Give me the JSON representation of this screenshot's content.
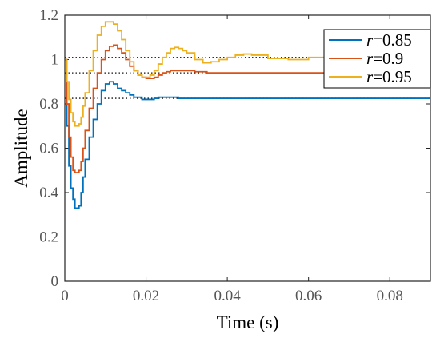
{
  "chart_data": {
    "type": "line",
    "xlabel": "Time (s)",
    "ylabel": "Amplitude",
    "xlim": [
      0,
      0.09
    ],
    "ylim": [
      0,
      1.2
    ],
    "xticks": [
      {
        "value": 0,
        "label": "0"
      },
      {
        "value": 0.02,
        "label": "0.02"
      },
      {
        "value": 0.04,
        "label": "0.04"
      },
      {
        "value": 0.06,
        "label": "0.06"
      },
      {
        "value": 0.08,
        "label": "0.08"
      }
    ],
    "yticks": [
      {
        "value": 0,
        "label": "0"
      },
      {
        "value": 0.2,
        "label": "0.2"
      },
      {
        "value": 0.4,
        "label": "0.4"
      },
      {
        "value": 0.6,
        "label": "0.6"
      },
      {
        "value": 0.8,
        "label": "0.8"
      },
      {
        "value": 1.0,
        "label": "1"
      },
      {
        "value": 1.2,
        "label": "1.2"
      }
    ],
    "grid": false,
    "legend_position": "top-right",
    "step_plot": true,
    "reference_lines": [
      0.825,
      0.94,
      1.01
    ],
    "series": [
      {
        "name_prefix": "r",
        "name_value": "=0.85",
        "color": "#0072BD",
        "x": [
          0,
          0.0005,
          0.001,
          0.0015,
          0.002,
          0.0025,
          0.003,
          0.0035,
          0.004,
          0.0045,
          0.005,
          0.006,
          0.007,
          0.008,
          0.009,
          0.01,
          0.011,
          0.012,
          0.013,
          0.014,
          0.015,
          0.016,
          0.017,
          0.018,
          0.019,
          0.02,
          0.021,
          0.022,
          0.023,
          0.024,
          0.026,
          0.028,
          0.03,
          0.035,
          0.04,
          0.05,
          0.06,
          0.07,
          0.08,
          0.09
        ],
        "values": [
          1.0,
          0.7,
          0.52,
          0.42,
          0.37,
          0.33,
          0.33,
          0.34,
          0.4,
          0.47,
          0.55,
          0.65,
          0.73,
          0.8,
          0.86,
          0.89,
          0.9,
          0.89,
          0.87,
          0.86,
          0.85,
          0.84,
          0.83,
          0.83,
          0.82,
          0.82,
          0.82,
          0.825,
          0.83,
          0.83,
          0.83,
          0.825,
          0.825,
          0.825,
          0.825,
          0.825,
          0.825,
          0.825,
          0.825,
          0.825
        ]
      },
      {
        "name_prefix": "r",
        "name_value": "=0.9",
        "color": "#D95319",
        "x": [
          0,
          0.0005,
          0.001,
          0.0015,
          0.002,
          0.0025,
          0.003,
          0.0035,
          0.004,
          0.0045,
          0.005,
          0.006,
          0.007,
          0.008,
          0.009,
          0.01,
          0.011,
          0.012,
          0.013,
          0.014,
          0.015,
          0.016,
          0.017,
          0.018,
          0.019,
          0.02,
          0.021,
          0.022,
          0.023,
          0.024,
          0.025,
          0.026,
          0.028,
          0.03,
          0.032,
          0.035,
          0.04,
          0.05,
          0.06,
          0.07,
          0.08,
          0.09
        ],
        "values": [
          1.0,
          0.8,
          0.65,
          0.56,
          0.5,
          0.49,
          0.49,
          0.5,
          0.54,
          0.6,
          0.68,
          0.78,
          0.87,
          0.94,
          1.0,
          1.04,
          1.06,
          1.065,
          1.05,
          1.03,
          1.0,
          0.97,
          0.95,
          0.93,
          0.92,
          0.915,
          0.915,
          0.92,
          0.93,
          0.94,
          0.945,
          0.95,
          0.95,
          0.95,
          0.945,
          0.94,
          0.94,
          0.94,
          0.94,
          0.94,
          0.94,
          0.94
        ]
      },
      {
        "name_prefix": "r",
        "name_value": "=0.95",
        "color": "#EDB120",
        "x": [
          0,
          0.0005,
          0.001,
          0.0015,
          0.002,
          0.0025,
          0.003,
          0.0035,
          0.004,
          0.0045,
          0.005,
          0.006,
          0.007,
          0.008,
          0.009,
          0.01,
          0.011,
          0.012,
          0.013,
          0.014,
          0.015,
          0.016,
          0.017,
          0.018,
          0.019,
          0.02,
          0.021,
          0.022,
          0.023,
          0.024,
          0.025,
          0.026,
          0.027,
          0.028,
          0.029,
          0.03,
          0.032,
          0.034,
          0.036,
          0.038,
          0.04,
          0.042,
          0.044,
          0.046,
          0.05,
          0.055,
          0.06,
          0.065,
          0.07,
          0.075,
          0.08,
          0.085,
          0.09
        ],
        "values": [
          1.0,
          0.9,
          0.82,
          0.76,
          0.72,
          0.7,
          0.7,
          0.71,
          0.74,
          0.79,
          0.85,
          0.95,
          1.04,
          1.11,
          1.15,
          1.17,
          1.17,
          1.16,
          1.13,
          1.09,
          1.04,
          0.99,
          0.95,
          0.93,
          0.92,
          0.92,
          0.93,
          0.95,
          0.98,
          1.01,
          1.03,
          1.05,
          1.055,
          1.05,
          1.04,
          1.03,
          1.0,
          0.985,
          0.99,
          1.0,
          1.01,
          1.02,
          1.025,
          1.02,
          1.005,
          1.0,
          1.01,
          1.015,
          1.01,
          1.005,
          1.01,
          1.01,
          1.01
        ]
      }
    ]
  }
}
